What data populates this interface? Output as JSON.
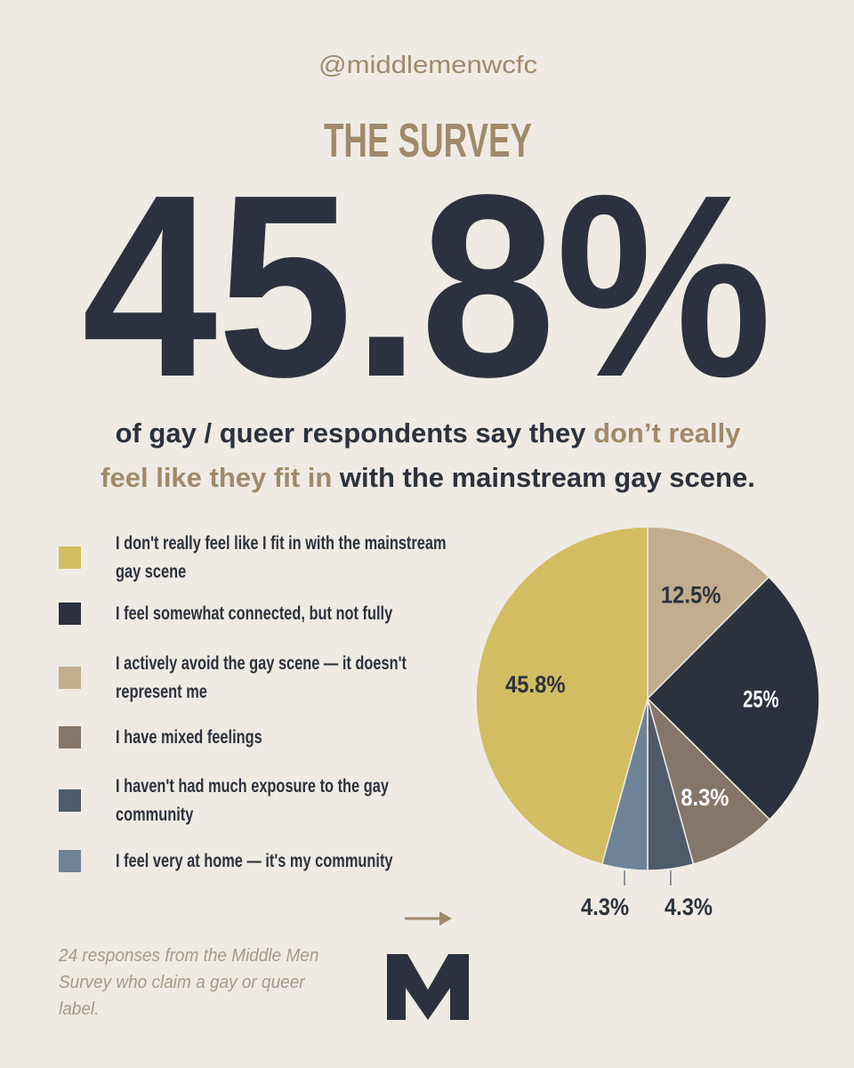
{
  "handle": "@middlemenwcfc",
  "title": "THE SURVEY",
  "headline": "45.8%",
  "subtitle": {
    "lines": [
      [
        {
          "text": "of gay / queer respondents say they ",
          "emphasis": false
        },
        {
          "text": "don’t really",
          "emphasis": true
        }
      ],
      [
        {
          "text": "feel like they fit in",
          "emphasis": true
        },
        {
          "text": " with the mainstream gay scene.",
          "emphasis": false
        }
      ]
    ]
  },
  "note": "24 responses from the Middle Men Survey who claim a gay or queer label.",
  "chart_data": {
    "type": "pie",
    "categories": [
      "I don't really feel like I fit in with the mainstream gay scene",
      "I feel somewhat connected, but not fully",
      "I actively avoid the gay scene — it doesn't represent me",
      "I have mixed feelings",
      "I haven't had much exposure to the gay community",
      "I feel very at home — it's my community"
    ],
    "values": [
      45.8,
      25,
      12.5,
      8.3,
      4.3,
      4.3
    ],
    "value_labels": [
      "45.8%",
      "25%",
      "12.5%",
      "8.3%",
      "4.3%",
      "4.3%"
    ],
    "colors": [
      "#d2bd62",
      "#2c323d",
      "#c2ad8e",
      "#85766a",
      "#4f5a6b",
      "#6f8398"
    ],
    "legend": "left"
  }
}
